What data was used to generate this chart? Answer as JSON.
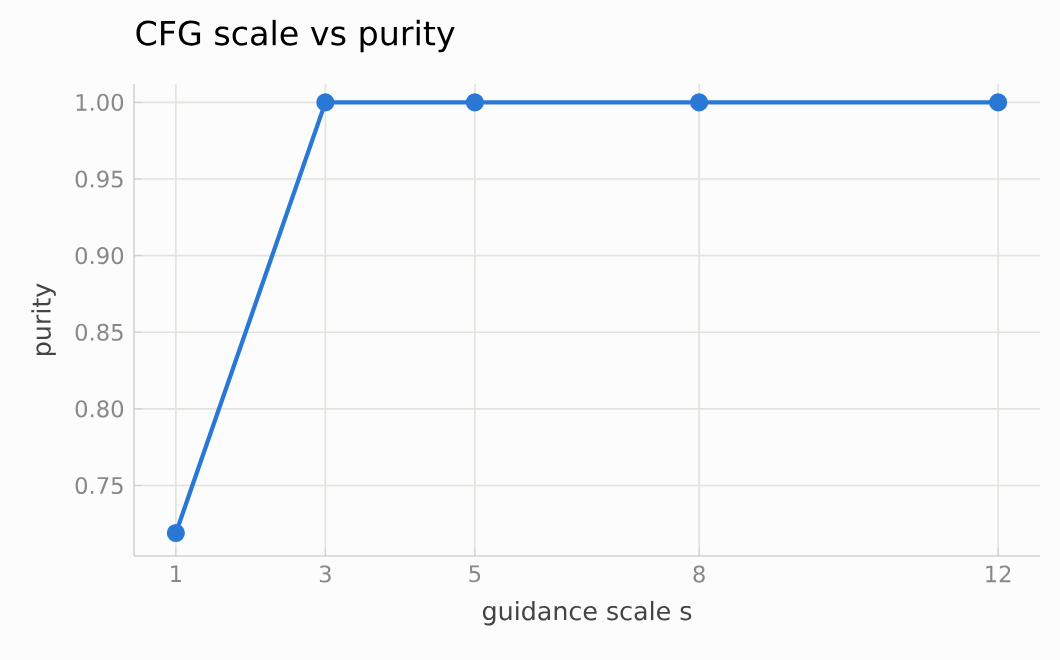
{
  "chart_data": {
    "type": "line",
    "title": "CFG scale vs purity",
    "xlabel": "guidance scale s",
    "ylabel": "purity",
    "x": [
      1,
      3,
      5,
      8,
      12
    ],
    "series": [
      {
        "color": "#2a78d6",
        "values": [
          0.719,
          1.0,
          1.0,
          1.0,
          1.0
        ]
      }
    ],
    "xlim": [
      0.44,
      12.56
    ],
    "ylim": [
      0.704,
      1.012
    ],
    "xticks": [
      1,
      3,
      5,
      8,
      12
    ],
    "yticks": [
      {
        "value": 0.75,
        "label": "0.75"
      },
      {
        "value": 0.8,
        "label": "0.80"
      },
      {
        "value": 0.85,
        "label": "0.85"
      },
      {
        "value": 0.9,
        "label": "0.90"
      },
      {
        "value": 0.95,
        "label": "0.95"
      },
      {
        "value": 1.0,
        "label": "1.00"
      }
    ],
    "grid": true,
    "marker": "circle",
    "line_style": "solid"
  }
}
